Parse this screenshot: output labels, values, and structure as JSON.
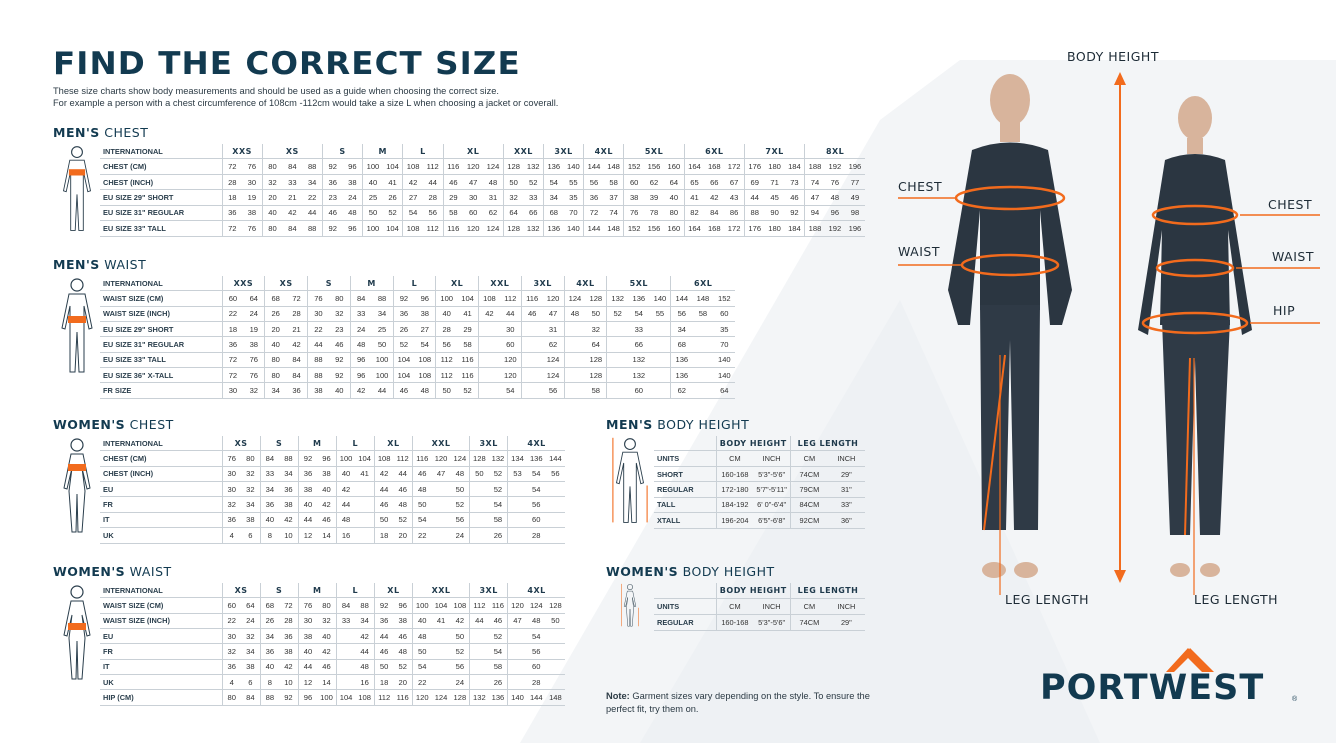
{
  "title": "FIND THE CORRECT SIZE",
  "intro": [
    "These size charts show body measurements and should be used as a guide when choosing the correct size.",
    "For example a person with a chest circumference of 108cm -112cm would take a size L when choosing a jacket or coverall."
  ],
  "colors": {
    "navy": "#123a50",
    "orange": "#f26b1d",
    "garment": "#2b3641"
  },
  "tables": {
    "men_chest": {
      "heading_bold": "MEN'S",
      "heading_rest": "CHEST",
      "figure": "male-chest-figure-icon",
      "header_label": "INTERNATIONAL",
      "groups": [
        [
          "XXS",
          2
        ],
        [
          "XS",
          3
        ],
        [
          "S",
          2
        ],
        [
          "M",
          2
        ],
        [
          "L",
          2
        ],
        [
          "XL",
          3
        ],
        [
          "XXL",
          2
        ],
        [
          "3XL",
          2
        ],
        [
          "4XL",
          2
        ],
        [
          "5XL",
          3
        ],
        [
          "6XL",
          3
        ],
        [
          "7XL",
          3
        ],
        [
          "8XL",
          3
        ]
      ],
      "rows": [
        {
          "label": "CHEST (CM)",
          "values": [
            "72",
            "76",
            "80",
            "84",
            "88",
            "92",
            "96",
            "100",
            "104",
            "108",
            "112",
            "116",
            "120",
            "124",
            "128",
            "132",
            "136",
            "140",
            "144",
            "148",
            "152",
            "156",
            "160",
            "164",
            "168",
            "172",
            "176",
            "180",
            "184",
            "188",
            "192",
            "196"
          ]
        },
        {
          "label": "CHEST (INCH)",
          "values": [
            "28",
            "30",
            "32",
            "33",
            "34",
            "36",
            "38",
            "40",
            "41",
            "42",
            "44",
            "46",
            "47",
            "48",
            "50",
            "52",
            "54",
            "55",
            "56",
            "58",
            "60",
            "62",
            "64",
            "65",
            "66",
            "67",
            "69",
            "71",
            "73",
            "74",
            "76",
            "77"
          ]
        },
        {
          "label": "EU SIZE 29\" SHORT",
          "values": [
            "18",
            "19",
            "20",
            "21",
            "22",
            "23",
            "24",
            "25",
            "26",
            "27",
            "28",
            "29",
            "30",
            "31",
            "32",
            "33",
            "34",
            "35",
            "36",
            "37",
            "38",
            "39",
            "40",
            "41",
            "42",
            "43",
            "44",
            "45",
            "46",
            "47",
            "48",
            "49"
          ]
        },
        {
          "label": "EU SIZE 31\" REGULAR",
          "values": [
            "36",
            "38",
            "40",
            "42",
            "44",
            "46",
            "48",
            "50",
            "52",
            "54",
            "56",
            "58",
            "60",
            "62",
            "64",
            "66",
            "68",
            "70",
            "72",
            "74",
            "76",
            "78",
            "80",
            "82",
            "84",
            "86",
            "88",
            "90",
            "92",
            "94",
            "96",
            "98"
          ]
        },
        {
          "label": "EU SIZE 33\" TALL",
          "values": [
            "72",
            "76",
            "80",
            "84",
            "88",
            "92",
            "96",
            "100",
            "104",
            "108",
            "112",
            "116",
            "120",
            "124",
            "128",
            "132",
            "136",
            "140",
            "144",
            "148",
            "152",
            "156",
            "160",
            "164",
            "168",
            "172",
            "176",
            "180",
            "184",
            "188",
            "192",
            "196"
          ]
        }
      ]
    },
    "men_waist": {
      "heading_bold": "MEN'S",
      "heading_rest": "WAIST",
      "figure": "male-waist-figure-icon",
      "header_label": "INTERNATIONAL",
      "groups": [
        [
          "XXS",
          2
        ],
        [
          "XS",
          2
        ],
        [
          "S",
          2
        ],
        [
          "M",
          2
        ],
        [
          "L",
          2
        ],
        [
          "XL",
          2
        ],
        [
          "XXL",
          2
        ],
        [
          "3XL",
          2
        ],
        [
          "4XL",
          2
        ],
        [
          "5XL",
          3
        ],
        [
          "6XL",
          3
        ]
      ],
      "rows": [
        {
          "label": "WAIST SIZE (CM)",
          "values": [
            "60",
            "64",
            "68",
            "72",
            "76",
            "80",
            "84",
            "88",
            "92",
            "96",
            "100",
            "104",
            "108",
            "112",
            "116",
            "120",
            "124",
            "128",
            "132",
            "136",
            "140",
            "144",
            "148",
            "152"
          ]
        },
        {
          "label": "WAIST SIZE (INCH)",
          "values": [
            "22",
            "24",
            "26",
            "28",
            "30",
            "32",
            "33",
            "34",
            "36",
            "38",
            "40",
            "41",
            "42",
            "44",
            "46",
            "47",
            "48",
            "50",
            "52",
            "54",
            "55",
            "56",
            "58",
            "60"
          ]
        },
        {
          "label": "EU SIZE 29\" SHORT",
          "values": [
            "18",
            "19",
            "20",
            "21",
            "22",
            "23",
            "24",
            "25",
            "26",
            "27",
            "28",
            "29",
            "",
            "30",
            "",
            "31",
            "",
            "32",
            "",
            "33",
            "",
            "34",
            "",
            "35"
          ]
        },
        {
          "label": "EU SIZE 31\" REGULAR",
          "values": [
            "36",
            "38",
            "40",
            "42",
            "44",
            "46",
            "48",
            "50",
            "52",
            "54",
            "56",
            "58",
            "",
            "60",
            "",
            "62",
            "",
            "64",
            "",
            "66",
            "",
            "68",
            "",
            "70"
          ]
        },
        {
          "label": "EU SIZE 33\" TALL",
          "values": [
            "72",
            "76",
            "80",
            "84",
            "88",
            "92",
            "96",
            "100",
            "104",
            "108",
            "112",
            "116",
            "",
            "120",
            "",
            "124",
            "",
            "128",
            "",
            "132",
            "",
            "136",
            "",
            "140"
          ]
        },
        {
          "label": "EU SIZE 36\" X-TALL",
          "values": [
            "72",
            "76",
            "80",
            "84",
            "88",
            "92",
            "96",
            "100",
            "104",
            "108",
            "112",
            "116",
            "",
            "120",
            "",
            "124",
            "",
            "128",
            "",
            "132",
            "",
            "136",
            "",
            "140"
          ]
        },
        {
          "label": "FR SIZE",
          "values": [
            "30",
            "32",
            "34",
            "36",
            "38",
            "40",
            "42",
            "44",
            "46",
            "48",
            "50",
            "52",
            "",
            "54",
            "",
            "56",
            "",
            "58",
            "",
            "60",
            "",
            "62",
            "",
            "64"
          ]
        }
      ]
    },
    "women_chest": {
      "heading_bold": "WOMEN'S",
      "heading_rest": "CHEST",
      "figure": "female-chest-figure-icon",
      "header_label": "INTERNATIONAL",
      "groups": [
        [
          "XS",
          2
        ],
        [
          "S",
          2
        ],
        [
          "M",
          2
        ],
        [
          "L",
          2
        ],
        [
          "XL",
          2
        ],
        [
          "XXL",
          3
        ],
        [
          "3XL",
          2
        ],
        [
          "4XL",
          3
        ]
      ],
      "rows": [
        {
          "label": "CHEST (CM)",
          "values": [
            "76",
            "80",
            "84",
            "88",
            "92",
            "96",
            "100",
            "104",
            "108",
            "112",
            "116",
            "120",
            "124",
            "128",
            "132",
            "134",
            "136",
            "144"
          ]
        },
        {
          "label": "CHEST (INCH)",
          "values": [
            "30",
            "32",
            "33",
            "34",
            "36",
            "38",
            "40",
            "41",
            "42",
            "44",
            "46",
            "47",
            "48",
            "50",
            "52",
            "53",
            "54",
            "56"
          ]
        },
        {
          "label": "EU",
          "values": [
            "30",
            "32",
            "34",
            "36",
            "38",
            "40",
            "42",
            "",
            "44",
            "46",
            "48",
            "",
            "50",
            "",
            "52",
            "",
            "54",
            ""
          ]
        },
        {
          "label": "FR",
          "values": [
            "32",
            "34",
            "36",
            "38",
            "40",
            "42",
            "44",
            "",
            "46",
            "48",
            "50",
            "",
            "52",
            "",
            "54",
            "",
            "56",
            ""
          ]
        },
        {
          "label": "IT",
          "values": [
            "36",
            "38",
            "40",
            "42",
            "44",
            "46",
            "48",
            "",
            "50",
            "52",
            "54",
            "",
            "56",
            "",
            "58",
            "",
            "60",
            ""
          ]
        },
        {
          "label": "UK",
          "values": [
            "4",
            "6",
            "8",
            "10",
            "12",
            "14",
            "16",
            "",
            "18",
            "20",
            "22",
            "",
            "24",
            "",
            "26",
            "",
            "28",
            ""
          ]
        }
      ]
    },
    "women_waist": {
      "heading_bold": "WOMEN'S",
      "heading_rest": "WAIST",
      "figure": "female-waist-figure-icon",
      "header_label": "INTERNATIONAL",
      "groups": [
        [
          "XS",
          2
        ],
        [
          "S",
          2
        ],
        [
          "M",
          2
        ],
        [
          "L",
          2
        ],
        [
          "XL",
          2
        ],
        [
          "XXL",
          3
        ],
        [
          "3XL",
          2
        ],
        [
          "4XL",
          3
        ]
      ],
      "rows": [
        {
          "label": "WAIST SIZE (CM)",
          "values": [
            "60",
            "64",
            "68",
            "72",
            "76",
            "80",
            "84",
            "88",
            "92",
            "96",
            "100",
            "104",
            "108",
            "112",
            "116",
            "120",
            "124",
            "128"
          ]
        },
        {
          "label": "WAIST SIZE (INCH)",
          "values": [
            "22",
            "24",
            "26",
            "28",
            "30",
            "32",
            "33",
            "34",
            "36",
            "38",
            "40",
            "41",
            "42",
            "44",
            "46",
            "47",
            "48",
            "50"
          ]
        },
        {
          "label": "EU",
          "values": [
            "30",
            "32",
            "34",
            "36",
            "38",
            "40",
            "",
            "42",
            "44",
            "46",
            "48",
            "",
            "50",
            "",
            "52",
            "",
            "54",
            ""
          ]
        },
        {
          "label": "FR",
          "values": [
            "32",
            "34",
            "36",
            "38",
            "40",
            "42",
            "",
            "44",
            "46",
            "48",
            "50",
            "",
            "52",
            "",
            "54",
            "",
            "56",
            ""
          ]
        },
        {
          "label": "IT",
          "values": [
            "36",
            "38",
            "40",
            "42",
            "44",
            "46",
            "",
            "48",
            "50",
            "52",
            "54",
            "",
            "56",
            "",
            "58",
            "",
            "60",
            ""
          ]
        },
        {
          "label": "UK",
          "values": [
            "4",
            "6",
            "8",
            "10",
            "12",
            "14",
            "",
            "16",
            "18",
            "20",
            "22",
            "",
            "24",
            "",
            "26",
            "",
            "28",
            ""
          ]
        },
        {
          "label": "HIP (CM)",
          "values": [
            "80",
            "84",
            "88",
            "92",
            "96",
            "100",
            "104",
            "108",
            "112",
            "116",
            "120",
            "124",
            "128",
            "132",
            "136",
            "140",
            "144",
            "148"
          ]
        }
      ]
    },
    "men_height": {
      "heading_bold": "MEN'S",
      "heading_rest": "BODY HEIGHT",
      "figure": "male-height-figure-icon",
      "groups": [
        [
          "BODY HEIGHT",
          2
        ],
        [
          "LEG LENGTH",
          2
        ]
      ],
      "rows": [
        {
          "label": "UNITS",
          "values": [
            "CM",
            "INCH",
            "CM",
            "INCH"
          ]
        },
        {
          "label": "SHORT",
          "values": [
            "160-168",
            "5'3\"-5'6\"",
            "74CM",
            "29\""
          ]
        },
        {
          "label": "REGULAR",
          "values": [
            "172-180",
            "5'7\"-5'11\"",
            "79CM",
            "31\""
          ]
        },
        {
          "label": "TALL",
          "values": [
            "184-192",
            "6' 0\"-6'4\"",
            "84CM",
            "33\""
          ]
        },
        {
          "label": "XTALL",
          "values": [
            "196-204",
            "6'5\"-6'8\"",
            "92CM",
            "36\""
          ]
        }
      ]
    },
    "women_height": {
      "heading_bold": "WOMEN'S",
      "heading_rest": "BODY HEIGHT",
      "figure": "female-height-figure-icon",
      "groups": [
        [
          "BODY HEIGHT",
          2
        ],
        [
          "LEG LENGTH",
          2
        ]
      ],
      "rows": [
        {
          "label": "UNITS",
          "values": [
            "CM",
            "INCH",
            "CM",
            "INCH"
          ]
        },
        {
          "label": "REGULAR",
          "values": [
            "160-168",
            "5'3\"-5'6\"",
            "74CM",
            "29\""
          ]
        }
      ]
    }
  },
  "note": {
    "bold": "Note:",
    "text": " Garment sizes vary depending on the style. To ensure the perfect fit, try them on."
  },
  "body_labels": {
    "body_height": "BODY HEIGHT",
    "men_chest": "CHEST",
    "men_waist": "WAIST",
    "men_leg": "LEG LENGTH",
    "women_chest": "CHEST",
    "women_waist": "WAIST",
    "women_hip": "HIP",
    "women_leg": "LEG LENGTH"
  },
  "logo": {
    "text": "PORTWEST",
    "mark": "®"
  }
}
